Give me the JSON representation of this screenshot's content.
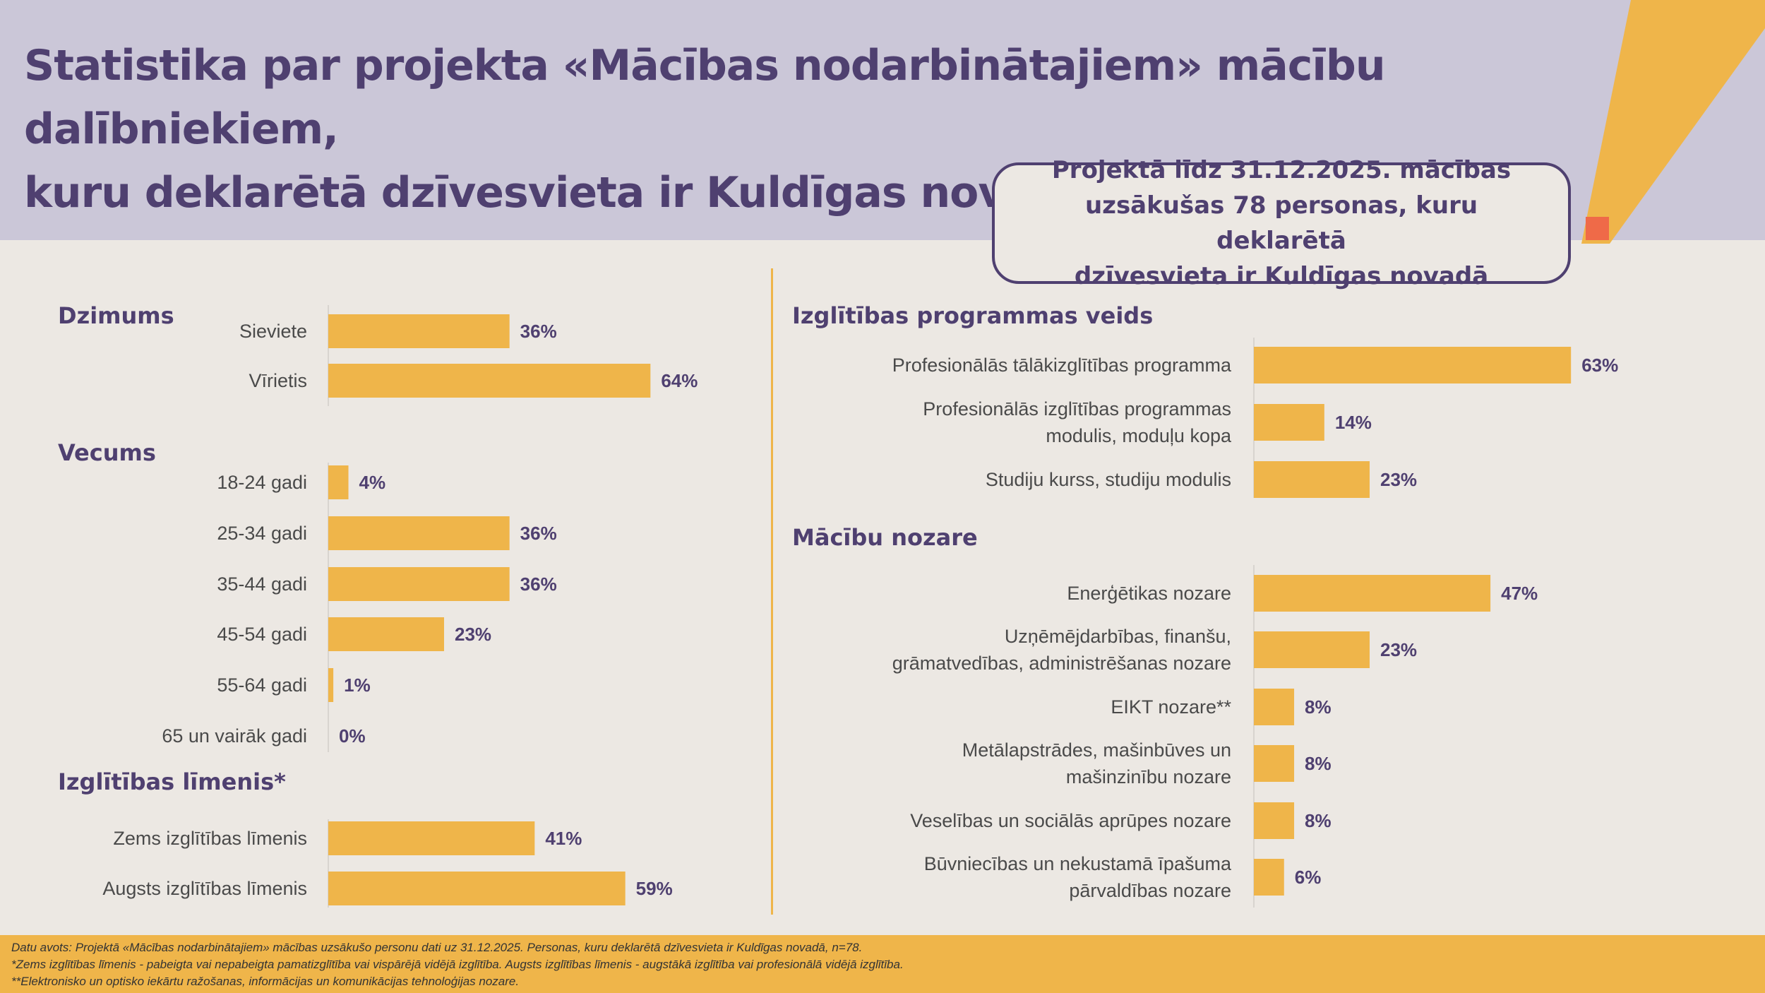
{
  "header": {
    "title_line1": "Statistika par projekta «Mācības nodarbinātajiem» mācību dalībniekiem,",
    "title_line2": "kuru deklarētā dzīvesvieta ir Kuldīgas novadā",
    "summary_line1": "Projektā līdz 31.12.2025. mācības",
    "summary_line2": "uzsākušas 78 personas, kuru deklarētā",
    "summary_line3": "dzīvesvieta ir Kuldīgas novadā"
  },
  "colors": {
    "header_bg": "#cbc7d8",
    "page_bg": "#ece8e3",
    "bar": "#efb54a",
    "accent_orange": "#ef6a48",
    "title_text": "#4f4070"
  },
  "chart_data": [
    {
      "type": "bar",
      "orientation": "horizontal",
      "title": "Dzimums",
      "categories": [
        [
          "Sieviete"
        ],
        [
          "Vīrietis"
        ]
      ],
      "values": [
        36,
        64
      ],
      "value_labels": [
        "36%",
        "64%"
      ],
      "unit": "%"
    },
    {
      "type": "bar",
      "orientation": "horizontal",
      "title": "Vecums",
      "categories": [
        [
          "18-24 gadi"
        ],
        [
          "25-34 gadi"
        ],
        [
          "35-44 gadi"
        ],
        [
          "45-54 gadi"
        ],
        [
          "55-64 gadi"
        ],
        [
          "65 un vairāk gadi"
        ]
      ],
      "values": [
        4,
        36,
        36,
        23,
        1,
        0
      ],
      "value_labels": [
        "4%",
        "36%",
        "36%",
        "23%",
        "1%",
        "0%"
      ],
      "unit": "%"
    },
    {
      "type": "bar",
      "orientation": "horizontal",
      "title": "Izglītības līmenis*",
      "categories": [
        [
          "Zems izglītības līmenis"
        ],
        [
          "Augsts izglītības līmenis"
        ]
      ],
      "values": [
        41,
        59
      ],
      "value_labels": [
        "41%",
        "59%"
      ],
      "unit": "%"
    },
    {
      "type": "bar",
      "orientation": "horizontal",
      "title": "Izglītības programmas veids",
      "categories": [
        [
          "Profesionālās tālākizglītības programma"
        ],
        [
          "Profesionālās izglītības programmas",
          "modulis, moduļu kopa"
        ],
        [
          "Studiju kurss, studiju modulis"
        ]
      ],
      "values": [
        63,
        14,
        23
      ],
      "value_labels": [
        "63%",
        "14%",
        "23%"
      ],
      "unit": "%"
    },
    {
      "type": "bar",
      "orientation": "horizontal",
      "title": "Mācību nozare",
      "categories": [
        [
          "Enerģētikas nozare"
        ],
        [
          "Uzņēmējdarbības, finanšu,",
          "grāmatvedības, administrēšanas nozare"
        ],
        [
          "EIKT nozare**"
        ],
        [
          "Metālapstrādes, mašinbūves un",
          "mašinzinību nozare"
        ],
        [
          "Veselības un sociālās aprūpes nozare"
        ],
        [
          "Būvniecības un nekustamā īpašuma",
          "pārvaldības nozare"
        ]
      ],
      "values": [
        47,
        23,
        8,
        8,
        8,
        6
      ],
      "value_labels": [
        "47%",
        "23%",
        "8%",
        "8%",
        "8%",
        "6%"
      ],
      "unit": "%"
    }
  ],
  "footer": {
    "source": "Datu avots: Projektā «Mācības nodarbinātajiem» mācības uzsākušo personu dati uz 31.12.2025. Personas, kuru deklarētā dzīvesvieta ir Kuldīgas novadā, n=78.",
    "note1": "*Zems izglītības līmenis - pabeigta vai nepabeigta pamatizglītība vai vispārējā vidējā izglītība. Augsts izglītības līmenis - augstākā izglītība vai profesionālā vidējā izglītība.",
    "note2": "**Elektronisko un optisko iekārtu ražošanas, informācijas un komunikācijas tehnoloģijas nozare."
  }
}
